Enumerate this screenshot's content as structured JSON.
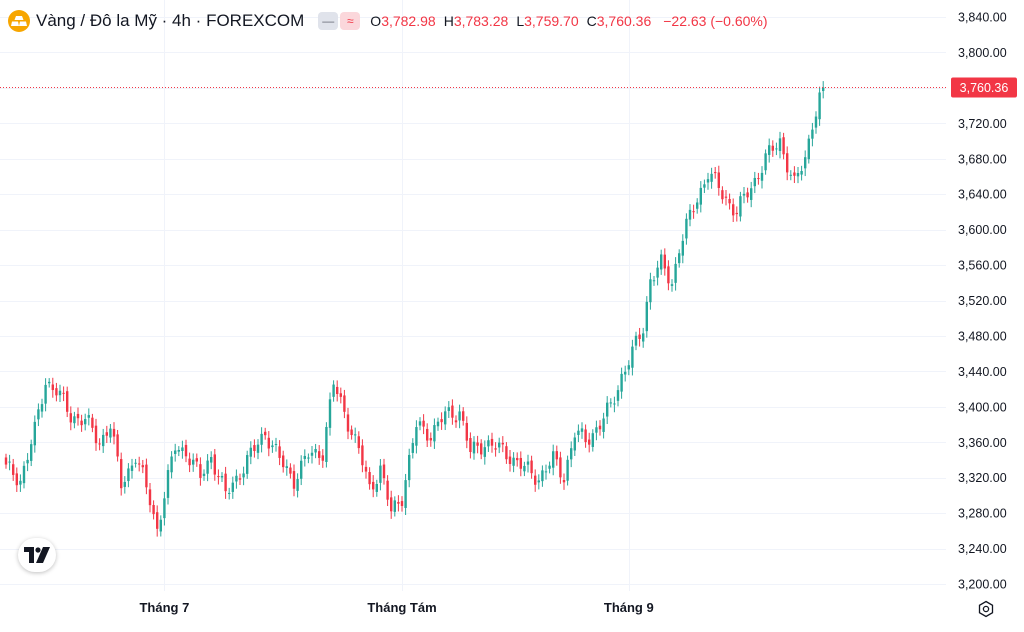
{
  "header": {
    "title": "Vàng / Đô la Mỹ · 4h · FOREXCOM",
    "logo_icon": "gold-bars-icon",
    "pill_icons": [
      "minus-icon",
      "approx-icon"
    ],
    "ohlc": {
      "o_label": "O",
      "o_value": "3,782.98",
      "h_label": "H",
      "h_value": "3,783.28",
      "l_label": "L",
      "l_value": "3,759.70",
      "c_label": "C",
      "c_value": "3,760.36",
      "change": "−22.63 (−0.60%)"
    }
  },
  "colors": {
    "up": "#26a69a",
    "down": "#f23645",
    "grid": "#f0f3fa",
    "text": "#131722",
    "price_label_bg": "#f23645"
  },
  "chart_data": {
    "type": "candlestick",
    "last_price": 3760.36,
    "last_price_label": "3,760.36",
    "ylim": [
      3195,
      3850
    ],
    "y_ticks": [
      3200,
      3240,
      3280,
      3320,
      3360,
      3400,
      3440,
      3480,
      3520,
      3560,
      3600,
      3640,
      3680,
      3720,
      3760,
      3800,
      3840
    ],
    "y_tick_labels": [
      "3,200.00",
      "3,240.00",
      "3,280.00",
      "3,320.00",
      "3,360.00",
      "3,400.00",
      "3,440.00",
      "3,480.00",
      "3,520.00",
      "3,560.00",
      "3,600.00",
      "3,640.00",
      "3,680.00",
      "3,720.00",
      "3,760.00",
      "3,800.00",
      "3,840.00"
    ],
    "x_labels": [
      {
        "label": "Tháng 7",
        "index": 44
      },
      {
        "label": "Tháng Tám",
        "index": 110
      },
      {
        "label": "Tháng 9",
        "index": 173
      }
    ],
    "count": 228,
    "close_anchors": [
      [
        0,
        3330
      ],
      [
        4,
        3318
      ],
      [
        8,
        3372
      ],
      [
        11,
        3430
      ],
      [
        14,
        3418
      ],
      [
        18,
        3390
      ],
      [
        22,
        3385
      ],
      [
        26,
        3360
      ],
      [
        29,
        3380
      ],
      [
        32,
        3312
      ],
      [
        36,
        3345
      ],
      [
        40,
        3295
      ],
      [
        42,
        3262
      ],
      [
        44,
        3300
      ],
      [
        47,
        3355
      ],
      [
        50,
        3350
      ],
      [
        54,
        3320
      ],
      [
        57,
        3345
      ],
      [
        61,
        3300
      ],
      [
        64,
        3320
      ],
      [
        68,
        3345
      ],
      [
        72,
        3372
      ],
      [
        76,
        3340
      ],
      [
        80,
        3318
      ],
      [
        84,
        3345
      ],
      [
        88,
        3350
      ],
      [
        91,
        3425
      ],
      [
        94,
        3395
      ],
      [
        98,
        3350
      ],
      [
        101,
        3308
      ],
      [
        104,
        3330
      ],
      [
        107,
        3280
      ],
      [
        110,
        3300
      ],
      [
        114,
        3378
      ],
      [
        118,
        3370
      ],
      [
        122,
        3390
      ],
      [
        126,
        3395
      ],
      [
        129,
        3348
      ],
      [
        133,
        3360
      ],
      [
        137,
        3352
      ],
      [
        140,
        3345
      ],
      [
        144,
        3330
      ],
      [
        148,
        3320
      ],
      [
        152,
        3340
      ],
      [
        155,
        3322
      ],
      [
        158,
        3370
      ],
      [
        161,
        3362
      ],
      [
        165,
        3380
      ],
      [
        168,
        3400
      ],
      [
        171,
        3435
      ],
      [
        174,
        3460
      ],
      [
        177,
        3490
      ],
      [
        179,
        3545
      ],
      [
        182,
        3560
      ],
      [
        185,
        3540
      ],
      [
        187,
        3580
      ],
      [
        191,
        3625
      ],
      [
        195,
        3665
      ],
      [
        199,
        3640
      ],
      [
        203,
        3620
      ],
      [
        207,
        3648
      ],
      [
        211,
        3680
      ],
      [
        215,
        3700
      ],
      [
        219,
        3650
      ],
      [
        222,
        3680
      ],
      [
        224,
        3722
      ],
      [
        227,
        3760
      ]
    ]
  }
}
